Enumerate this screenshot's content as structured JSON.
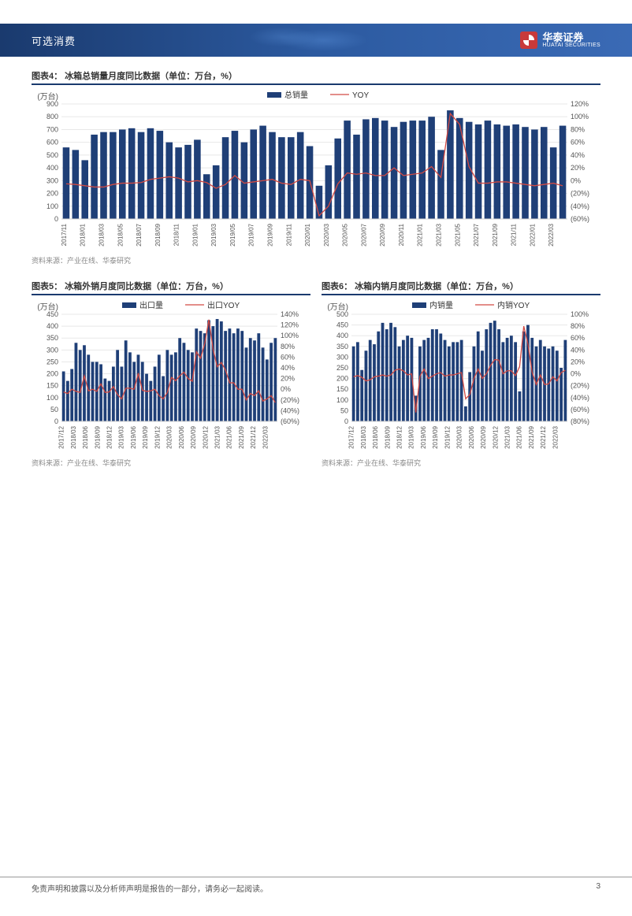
{
  "header": {
    "category": "可选消费",
    "company_cn": "华泰证券",
    "company_en": "HUATAI SECURITIES"
  },
  "chart4": {
    "title": "图表4： 冰箱总销量月度同比数据（单位：万台，%）",
    "source": "资料来源：产业在线、华泰研究",
    "type": "bar+line",
    "x_labels": [
      "2017/11",
      "2018/01",
      "2018/03",
      "2018/05",
      "2018/07",
      "2018/09",
      "2018/11",
      "2019/01",
      "2019/03",
      "2019/05",
      "2019/07",
      "2019/09",
      "2019/11",
      "2020/01",
      "2020/03",
      "2020/05",
      "2020/07",
      "2020/09",
      "2020/11",
      "2021/01",
      "2021/03",
      "2021/05",
      "2021/07",
      "2021/09",
      "2021/11",
      "2022/01",
      "2022/03"
    ],
    "bars": [
      560,
      540,
      460,
      660,
      680,
      680,
      700,
      710,
      680,
      710,
      690,
      600,
      560,
      580,
      620,
      350,
      420,
      640,
      690,
      600,
      700,
      730,
      680,
      640,
      640,
      680,
      570,
      260,
      420,
      630,
      770,
      660,
      780,
      790,
      770,
      720,
      760,
      770,
      770,
      800,
      540,
      850,
      790,
      760,
      740,
      770,
      740,
      730,
      740,
      720,
      700,
      720,
      560,
      730
    ],
    "yoy_line": [
      -5,
      -6,
      -8,
      -10,
      -10,
      -6,
      -4,
      -4,
      -3,
      2,
      4,
      6,
      4,
      -2,
      0,
      -3,
      -12,
      -6,
      8,
      -4,
      -2,
      0,
      2,
      -4,
      -6,
      2,
      0,
      -55,
      -40,
      -5,
      12,
      10,
      12,
      8,
      8,
      20,
      8,
      10,
      12,
      22,
      5,
      105,
      88,
      22,
      -4,
      -4,
      -2,
      -2,
      -4,
      -6,
      -8,
      -6,
      -4,
      -8
    ],
    "y_left": {
      "unit": "(万台)",
      "min": 0,
      "max": 900,
      "step": 100
    },
    "y_right": {
      "min": -60,
      "max": 120,
      "step": 20,
      "fmt": "pct"
    },
    "legend": {
      "bar": "总销量",
      "line": "YOY"
    },
    "bar_color": "#1f3f77",
    "line_color": "#d24a43",
    "grid_color": "#e8e8e8",
    "bg": "#ffffff"
  },
  "chart5": {
    "title": "图表5： 冰箱外销月度同比数据（单位：万台，%）",
    "source": "资料来源：产业在线、华泰研究",
    "type": "bar+line",
    "x_labels": [
      "2017/12",
      "2018/03",
      "2018/06",
      "2018/09",
      "2018/12",
      "2019/03",
      "2019/06",
      "2019/09",
      "2019/12",
      "2020/03",
      "2020/06",
      "2020/09",
      "2020/12",
      "2021/03",
      "2021/06",
      "2021/09",
      "2021/12",
      "2022/03"
    ],
    "bars": [
      210,
      170,
      220,
      330,
      300,
      320,
      280,
      250,
      250,
      240,
      180,
      170,
      230,
      300,
      230,
      340,
      290,
      250,
      280,
      250,
      200,
      170,
      230,
      280,
      190,
      300,
      280,
      290,
      350,
      330,
      300,
      290,
      390,
      380,
      370,
      425,
      400,
      430,
      420,
      380,
      390,
      370,
      390,
      380,
      310,
      350,
      340,
      370,
      310,
      260,
      330,
      350
    ],
    "yoy_line": [
      -5,
      -8,
      0,
      -4,
      -6,
      25,
      -3,
      0,
      -4,
      10,
      -6,
      -5,
      5,
      -10,
      -18,
      2,
      2,
      0,
      30,
      -2,
      -4,
      -3,
      0,
      -12,
      -18,
      -6,
      22,
      16,
      25,
      32,
      20,
      15,
      70,
      58,
      85,
      130,
      75,
      42,
      50,
      36,
      12,
      12,
      0,
      0,
      -20,
      -8,
      -12,
      -3,
      -22,
      -18,
      -12,
      -25
    ],
    "y_left": {
      "unit": "(万台)",
      "min": 0,
      "max": 450,
      "step": 50
    },
    "y_right": {
      "min": -60,
      "max": 140,
      "step": 20,
      "fmt": "pct"
    },
    "legend": {
      "bar": "出口量",
      "line": "出口YOY"
    },
    "bar_color": "#1f3f77",
    "line_color": "#d24a43",
    "grid_color": "#e8e8e8",
    "bg": "#ffffff"
  },
  "chart6": {
    "title": "图表6： 冰箱内销月度同比数据（单位：万台，%）",
    "source": "资料来源：产业在线、华泰研究",
    "type": "bar+line",
    "x_labels": [
      "2017/12",
      "2018/03",
      "2018/06",
      "2018/09",
      "2018/12",
      "2019/03",
      "2019/06",
      "2019/09",
      "2019/12",
      "2020/03",
      "2020/06",
      "2020/09",
      "2020/12",
      "2021/03",
      "2021/06",
      "2021/09",
      "2021/12",
      "2022/03"
    ],
    "bars": [
      350,
      370,
      240,
      330,
      380,
      360,
      420,
      460,
      430,
      460,
      440,
      350,
      380,
      400,
      390,
      120,
      350,
      380,
      390,
      430,
      430,
      410,
      380,
      350,
      370,
      370,
      380,
      70,
      230,
      350,
      420,
      330,
      430,
      460,
      470,
      430,
      370,
      390,
      400,
      370,
      140,
      420,
      450,
      390,
      350,
      380,
      350,
      340,
      350,
      330,
      250,
      380
    ],
    "yoy_line": [
      -5,
      -3,
      -6,
      -12,
      -10,
      -5,
      -4,
      -2,
      -4,
      -2,
      6,
      8,
      5,
      -2,
      0,
      -65,
      -4,
      8,
      -8,
      -4,
      0,
      2,
      -4,
      -2,
      -2,
      0,
      2,
      -42,
      -35,
      -8,
      8,
      -8,
      0,
      14,
      24,
      23,
      0,
      5,
      5,
      -3,
      12,
      80,
      50,
      3,
      -18,
      -2,
      -18,
      -17,
      -5,
      -12,
      2,
      6
    ],
    "y_left": {
      "unit": "(万台)",
      "min": 0,
      "max": 500,
      "step": 50
    },
    "y_right": {
      "min": -80,
      "max": 100,
      "step": 20,
      "fmt": "pct"
    },
    "legend": {
      "bar": "内销量",
      "line": "内销YOY"
    },
    "bar_color": "#1f3f77",
    "line_color": "#d24a43",
    "grid_color": "#e8e8e8",
    "bg": "#ffffff"
  },
  "footer": {
    "disclaimer": "免责声明和披露以及分析师声明是报告的一部分，请务必一起阅读。",
    "page": "3"
  }
}
